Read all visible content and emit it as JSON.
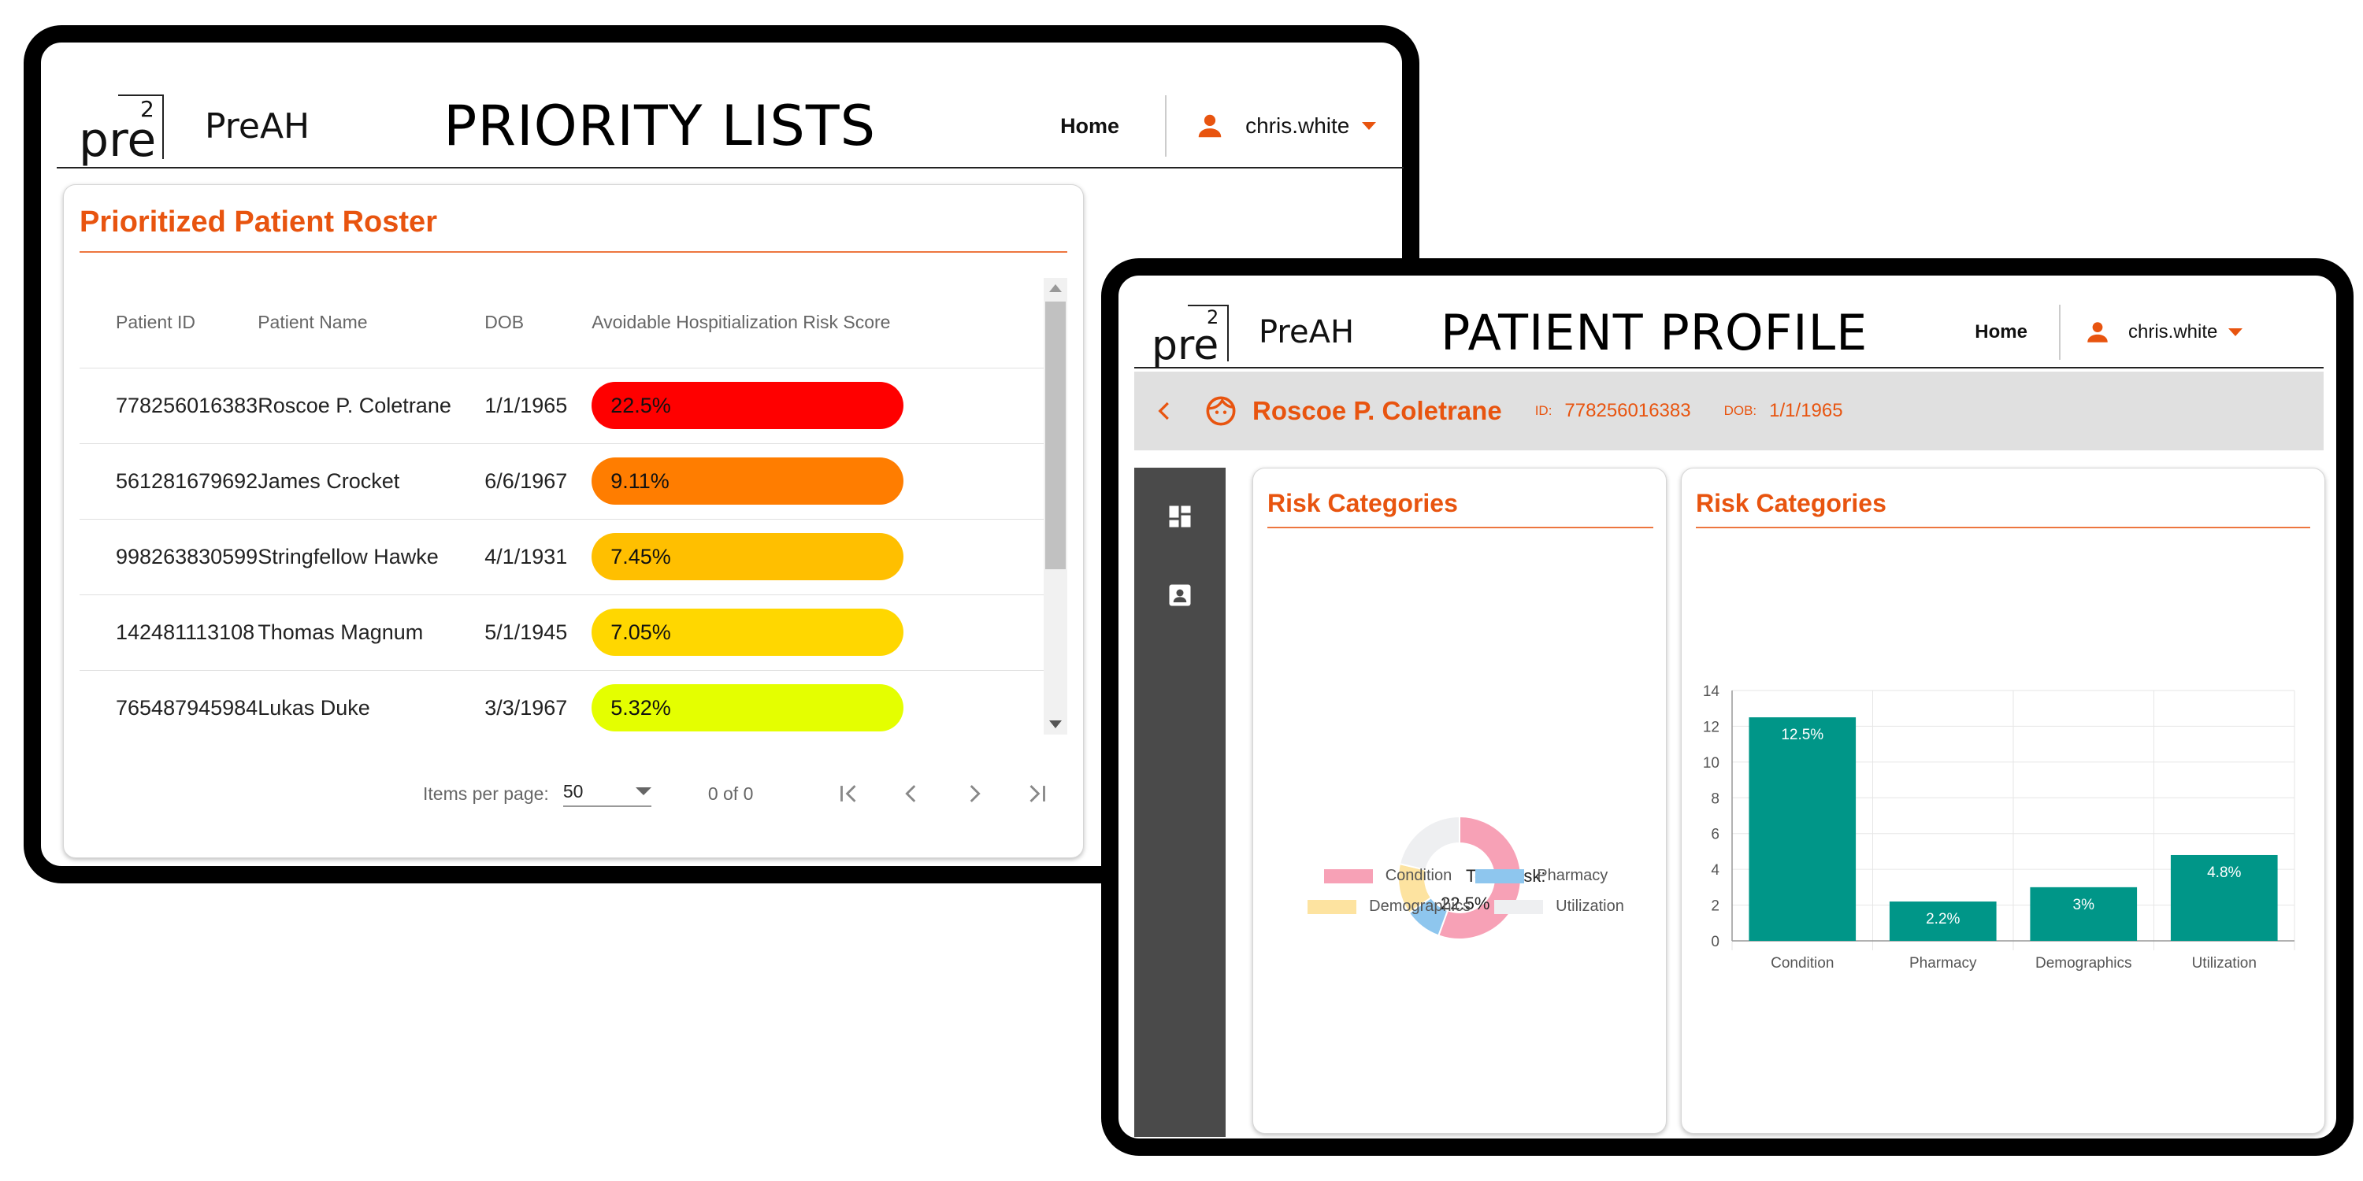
{
  "left_app": {
    "header": {
      "logo_text": "pre",
      "logo_sup": "2",
      "app_name": "PreAH",
      "page_title": "PRIORITY LISTS",
      "nav_home": "Home",
      "username": "chris.white"
    },
    "roster": {
      "title": "Prioritized Patient Roster",
      "columns": [
        "Patient ID",
        "Patient Name",
        "DOB",
        "Avoidable Hospitialization Risk Score"
      ],
      "rows": [
        {
          "id": "778256016383",
          "name": "Roscoe P. Coletrane",
          "dob": "1/1/1965",
          "score": "22.5%",
          "color": "#ff0000"
        },
        {
          "id": "561281679692",
          "name": "James Crocket",
          "dob": "6/6/1967",
          "score": "9.11%",
          "color": "#ff7d00"
        },
        {
          "id": "998263830599",
          "name": "Stringfellow Hawke",
          "dob": "4/1/1931",
          "score": "7.45%",
          "color": "#ffbf00"
        },
        {
          "id": "142481113108",
          "name": "Thomas Magnum",
          "dob": "5/1/1945",
          "score": "7.05%",
          "color": "#ffd700"
        },
        {
          "id": "765487945984",
          "name": "Lukas Duke",
          "dob": "3/3/1967",
          "score": "5.32%",
          "color": "#e4ff00"
        }
      ],
      "partial_row_color": "#e8ff00",
      "pager": {
        "items_per_page_label": "Items per page:",
        "items_per_page_value": "50",
        "range": "0 of 0"
      }
    }
  },
  "right_app": {
    "header": {
      "logo_text": "pre",
      "logo_sup": "2",
      "app_name": "PreAH",
      "page_title": "PATIENT PROFILE",
      "nav_home": "Home",
      "username": "chris.white"
    },
    "patient": {
      "name": "Roscoe P. Coletrane",
      "id_label": "ID:",
      "id": "778256016383",
      "dob_label": "DOB:",
      "dob": "1/1/1965"
    },
    "sidebar_icons": [
      "dashboard-icon",
      "contact-card-icon"
    ],
    "donut_card_title": "Risk Categories",
    "bar_card_title": "Risk Categories",
    "donut_center_line1": "Total Risk:",
    "donut_center_line2": "22.5%"
  },
  "colors": {
    "accent": "#e8540f",
    "bar": "#009688",
    "sidebar": "#4a4a4a"
  },
  "chart_data": [
    {
      "type": "pie",
      "variant": "donut",
      "categories": [
        "Condition",
        "Pharmacy",
        "Demographics",
        "Utilization"
      ],
      "values": [
        12.5,
        2.2,
        3,
        4.8
      ],
      "colors": [
        "#f7a1b6",
        "#8ec6ee",
        "#fde3a0",
        "#eeeff1"
      ],
      "legend": "bottom"
    },
    {
      "type": "bar",
      "categories": [
        "Condition",
        "Pharmacy",
        "Demographics",
        "Utilization"
      ],
      "values": [
        12.5,
        2.2,
        3,
        4.8
      ],
      "data_labels": [
        "12.5%",
        "2.2%",
        "3%",
        "4.8%"
      ],
      "ylim": [
        0,
        14
      ],
      "yticks": [
        0,
        2,
        4,
        6,
        8,
        10,
        12,
        14
      ],
      "grid": true
    }
  ]
}
